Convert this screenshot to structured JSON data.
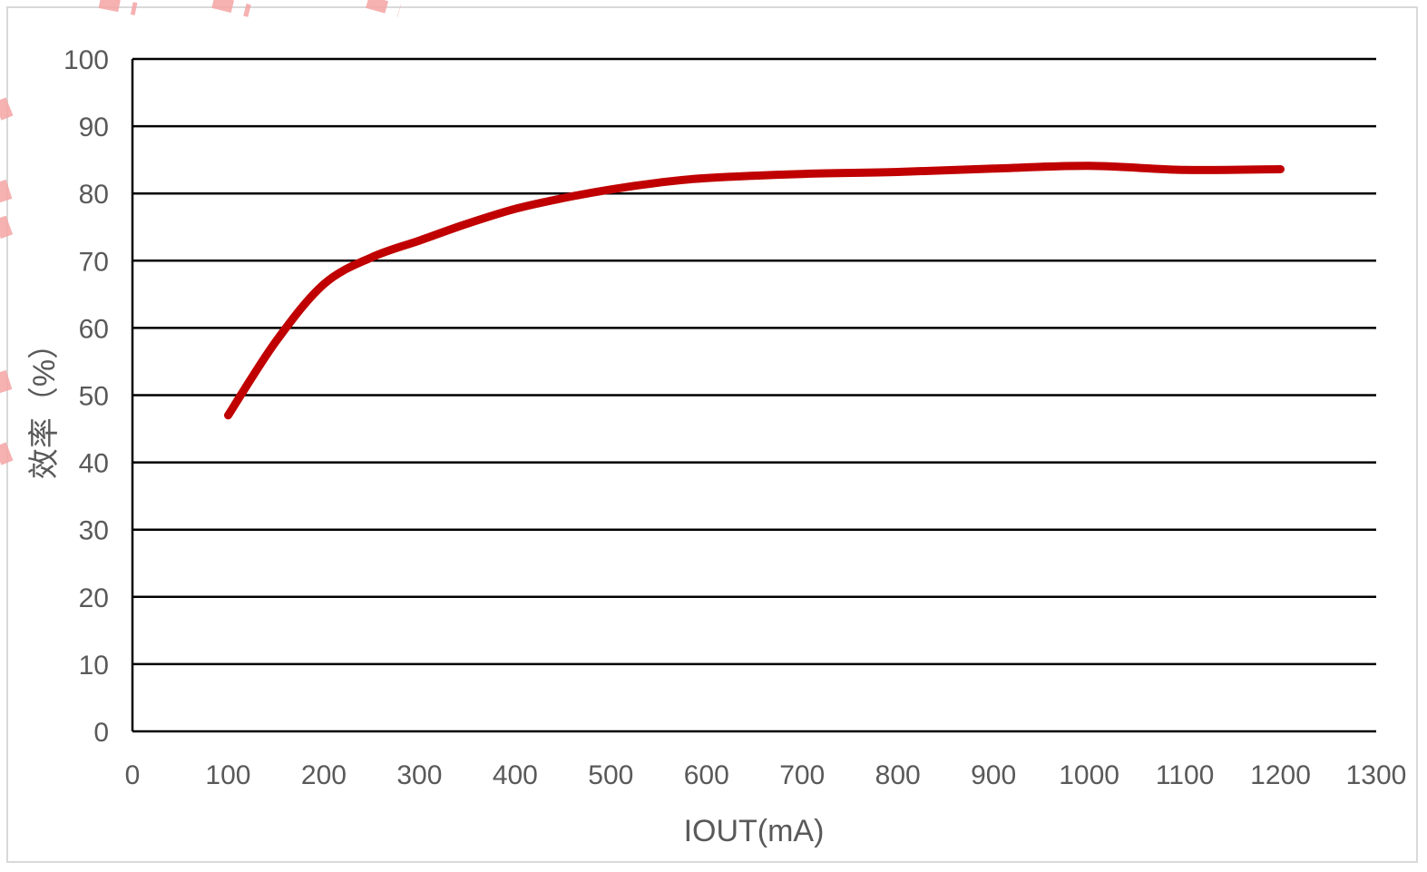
{
  "chart_data": {
    "type": "line",
    "title": "",
    "xlabel": "IOUT(mA)",
    "ylabel": "效率（%）",
    "xlim": [
      0,
      1300
    ],
    "ylim": [
      0,
      100
    ],
    "x_ticks": [
      "0",
      "100",
      "200",
      "300",
      "400",
      "500",
      "600",
      "700",
      "800",
      "900",
      "1000",
      "1100",
      "1200",
      "1300"
    ],
    "y_ticks": [
      "0",
      "10",
      "20",
      "30",
      "40",
      "50",
      "60",
      "70",
      "80",
      "90",
      "100"
    ],
    "grid": "horizontal",
    "legend": "none",
    "series": [
      {
        "color": "#c00000",
        "x": [
          100,
          150,
          200,
          250,
          300,
          350,
          400,
          450,
          500,
          550,
          600,
          700,
          800,
          900,
          1000,
          1100,
          1200
        ],
        "y": [
          47,
          58,
          66.5,
          70.5,
          73,
          75.5,
          77.7,
          79.3,
          80.6,
          81.6,
          82.3,
          82.9,
          83.2,
          83.7,
          84.1,
          83.5,
          83.6
        ]
      }
    ]
  }
}
